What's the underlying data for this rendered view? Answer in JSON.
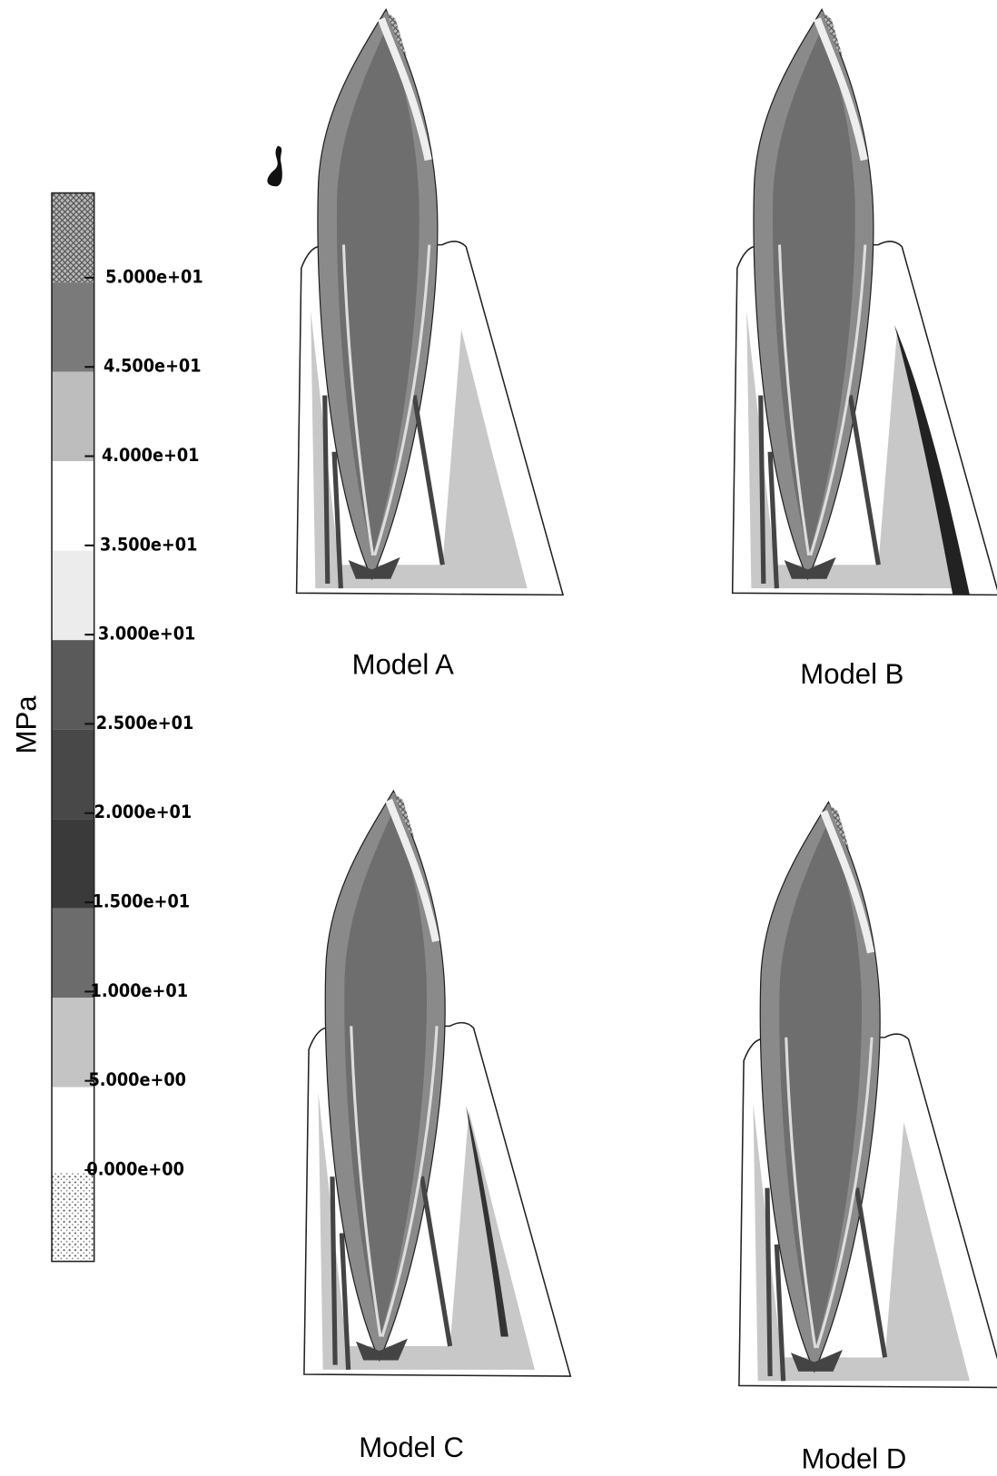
{
  "legend": {
    "unit": "MPa",
    "labels": [
      "5.000e+01",
      "4.500e+01",
      "4.000e+01",
      "3.500e+01",
      "3.000e+01",
      "2.500e+01",
      "2.000e+01",
      "1.500e+01",
      "1.000e+01",
      "5.000e+00",
      "0.000e+00"
    ]
  },
  "panels": [
    {
      "label": "Model A"
    },
    {
      "label": "Model B"
    },
    {
      "label": "Model C"
    },
    {
      "label": "Model D"
    }
  ]
}
